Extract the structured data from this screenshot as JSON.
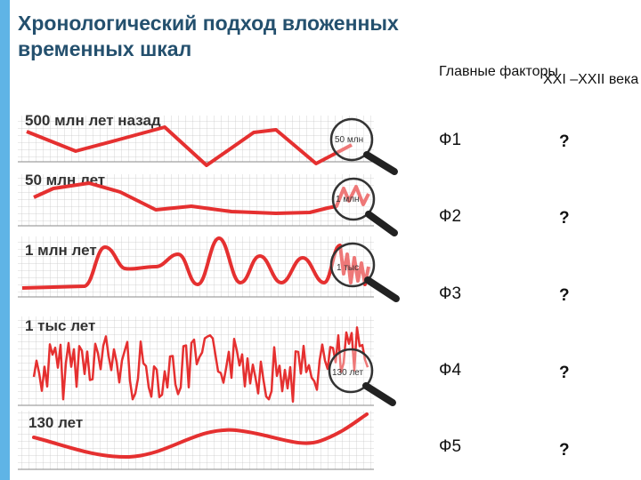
{
  "title": "Хронологический подход вложенных временных шкал",
  "table": {
    "header_factors": "Главные факторы",
    "header_century": "XXI –XXII века",
    "rows": [
      {
        "factor": "Ф1",
        "value": "?"
      },
      {
        "factor": "Ф2",
        "value": "?"
      },
      {
        "factor": "Ф3",
        "value": "?"
      },
      {
        "factor": "Ф4",
        "value": "?"
      },
      {
        "factor": "Ф5",
        "value": "?"
      }
    ]
  },
  "timescales": [
    {
      "label": "500 млн лет назад",
      "lens": "50 млн",
      "style": "smooth"
    },
    {
      "label": "50 млн лет",
      "lens": "1 млн",
      "style": "smooth"
    },
    {
      "label": "1 млн лет",
      "lens": "1 тыс",
      "style": "wavy"
    },
    {
      "label": "1 тыс лет",
      "lens": "130 лет",
      "style": "noisy"
    },
    {
      "label": "130 лет",
      "lens": "",
      "style": "smooth"
    }
  ],
  "colors": {
    "line": "#e53030",
    "grid": "#c9c9c9",
    "accent_bar": "#5fb4e6",
    "title": "#24506e"
  }
}
